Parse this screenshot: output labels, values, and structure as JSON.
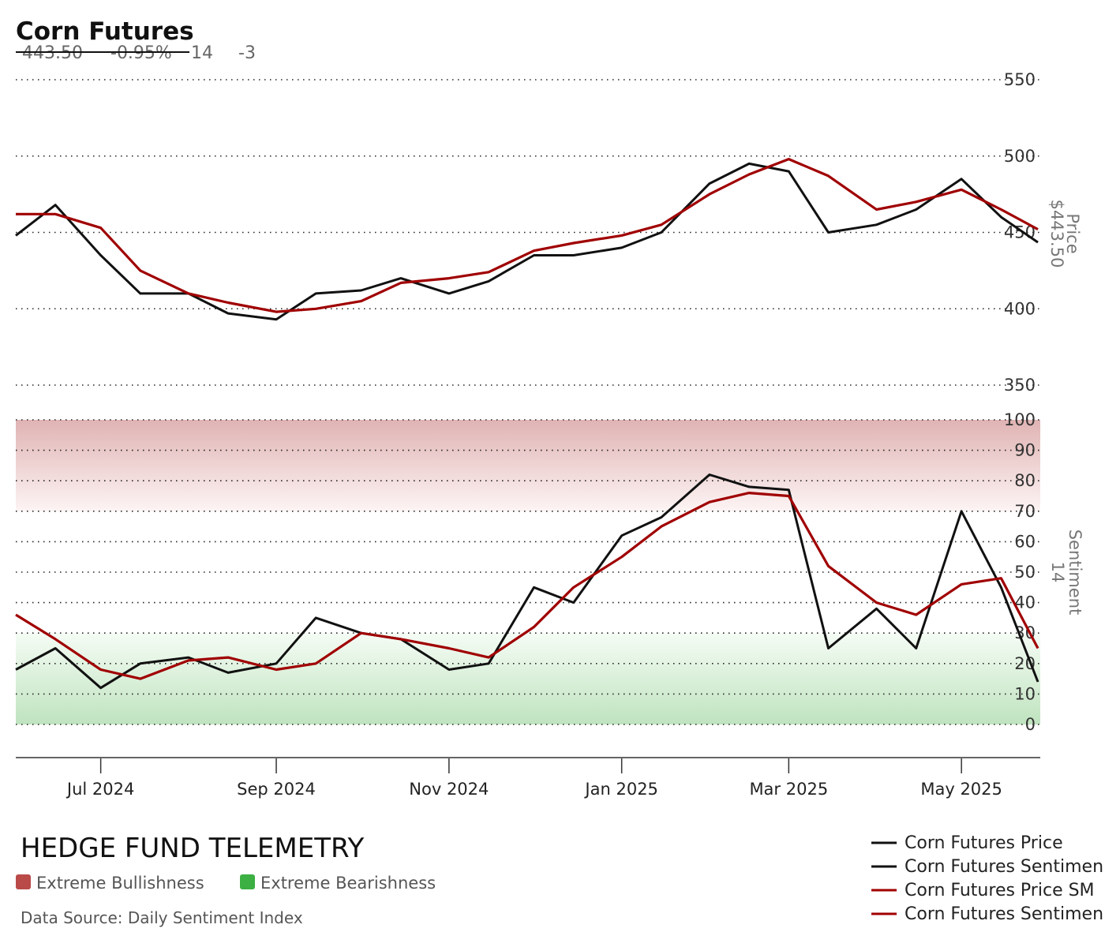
{
  "header": {
    "title": "Corn Futures",
    "price_value": "443.50",
    "change_value": "-0.95%",
    "sentiment_value": "14",
    "sentiment_change": "-3"
  },
  "brand": "HEDGE FUND TELEMETRY",
  "zones_legend": [
    {
      "label": "Extreme Bullishness",
      "color": "#b94a48"
    },
    {
      "label": "Extreme Bearishness",
      "color": "#3cb043"
    }
  ],
  "source": "Data Source: Daily Sentiment Index",
  "legend": [
    {
      "label": "Corn Futures Price",
      "color": "#111111"
    },
    {
      "label": "Corn Futures Sentimen",
      "color": "#111111"
    },
    {
      "label": "Corn Futures Price SM",
      "color": "#a00000"
    },
    {
      "label": "Corn Futures Sentimen",
      "color": "#a00000"
    }
  ],
  "chart_data": [
    {
      "type": "line",
      "panel": "price",
      "axis_title": "Price",
      "axis_value": "$443.50",
      "ylim": [
        350,
        550
      ],
      "yticks": [
        "350",
        "400",
        "450",
        "500",
        "550"
      ],
      "x": [
        "2024-06-01",
        "2024-06-15",
        "2024-07-01",
        "2024-07-15",
        "2024-08-01",
        "2024-08-15",
        "2024-09-01",
        "2024-09-15",
        "2024-10-01",
        "2024-10-15",
        "2024-11-01",
        "2024-11-15",
        "2024-12-01",
        "2024-12-15",
        "2025-01-01",
        "2025-01-15",
        "2025-02-01",
        "2025-02-15",
        "2025-03-01",
        "2025-03-15",
        "2025-04-01",
        "2025-04-15",
        "2025-05-01",
        "2025-05-15",
        "2025-05-28"
      ],
      "series": [
        {
          "name": "Corn Futures Price",
          "color": "#111111",
          "values": [
            448,
            468,
            435,
            410,
            410,
            397,
            393,
            410,
            412,
            420,
            410,
            418,
            435,
            435,
            440,
            450,
            482,
            495,
            490,
            450,
            455,
            465,
            485,
            460,
            443.5
          ]
        },
        {
          "name": "Corn Futures Price SMA",
          "color": "#a00000",
          "values": [
            462,
            462,
            453,
            425,
            410,
            404,
            398,
            400,
            405,
            417,
            420,
            424,
            438,
            443,
            448,
            455,
            475,
            488,
            498,
            487,
            465,
            470,
            478,
            465,
            452
          ]
        }
      ]
    },
    {
      "type": "line",
      "panel": "sentiment",
      "axis_title": "Sentiment",
      "axis_value": "14",
      "ylim": [
        0,
        100
      ],
      "yticks": [
        "0",
        "10",
        "20",
        "30",
        "40",
        "50",
        "60",
        "70",
        "80",
        "90",
        "100"
      ],
      "extreme_bullish_range": [
        70,
        100
      ],
      "extreme_bearish_range": [
        0,
        30
      ],
      "x": [
        "2024-06-01",
        "2024-06-15",
        "2024-07-01",
        "2024-07-15",
        "2024-08-01",
        "2024-08-15",
        "2024-09-01",
        "2024-09-15",
        "2024-10-01",
        "2024-10-15",
        "2024-11-01",
        "2024-11-15",
        "2024-12-01",
        "2024-12-15",
        "2025-01-01",
        "2025-01-15",
        "2025-02-01",
        "2025-02-15",
        "2025-03-01",
        "2025-03-15",
        "2025-04-01",
        "2025-04-15",
        "2025-05-01",
        "2025-05-15",
        "2025-05-28"
      ],
      "series": [
        {
          "name": "Corn Futures Sentiment",
          "color": "#111111",
          "values": [
            18,
            25,
            12,
            20,
            22,
            17,
            20,
            35,
            30,
            28,
            18,
            20,
            45,
            40,
            62,
            68,
            82,
            78,
            77,
            25,
            38,
            25,
            70,
            45,
            14
          ]
        },
        {
          "name": "Corn Futures Sentiment SMA",
          "color": "#a00000",
          "values": [
            36,
            28,
            18,
            15,
            21,
            22,
            18,
            20,
            30,
            28,
            25,
            22,
            32,
            45,
            55,
            65,
            73,
            76,
            75,
            52,
            40,
            36,
            46,
            48,
            25
          ]
        }
      ]
    }
  ],
  "x_axis": {
    "labels": [
      "Jul 2024",
      "Sep 2024",
      "Nov 2024",
      "Jan 2025",
      "Mar 2025",
      "May 2025"
    ],
    "label_dates": [
      "2024-07-01",
      "2024-09-01",
      "2024-11-01",
      "2025-01-01",
      "2025-03-01",
      "2025-05-01"
    ]
  }
}
